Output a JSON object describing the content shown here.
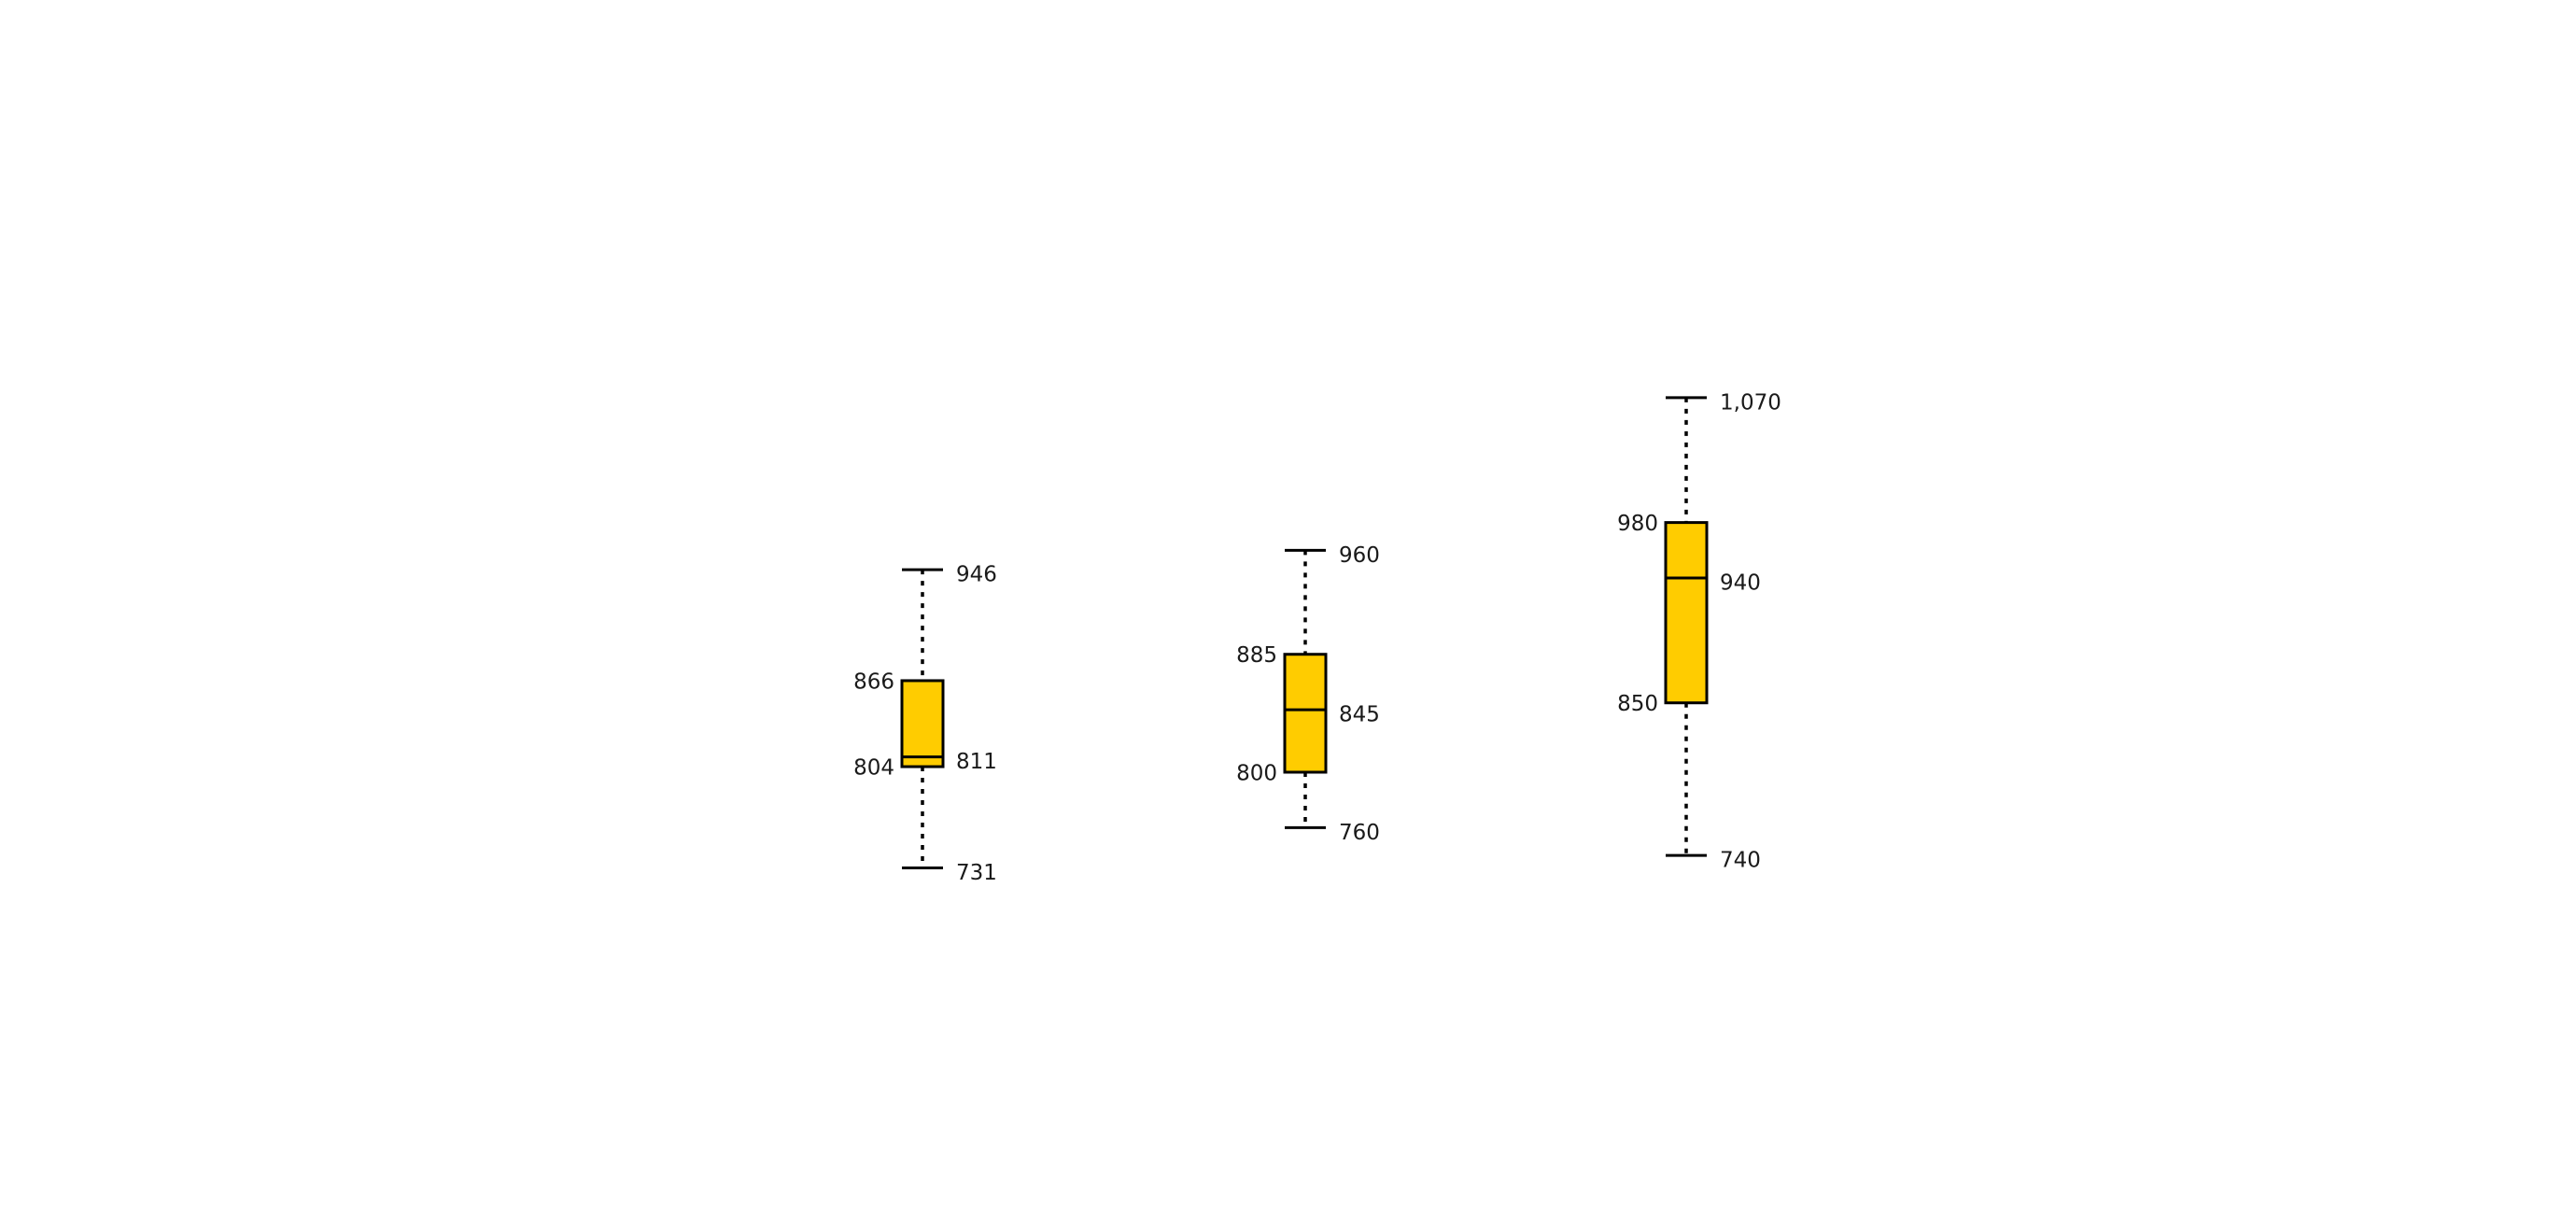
{
  "chart_data": {
    "type": "box",
    "title": "",
    "xlabel": "",
    "ylabel": "",
    "grid": false,
    "legend": "none",
    "box_color": "#FFCC00",
    "edge_color": "#000000",
    "ylim": [
      700,
      1100
    ],
    "boxes": [
      {
        "min": 731,
        "q1": 804,
        "median": 811,
        "q3": 866,
        "max": 946,
        "labels": {
          "min": "731",
          "q1": "804",
          "median": "811",
          "q3": "866",
          "max": "946"
        }
      },
      {
        "min": 760,
        "q1": 800,
        "median": 845,
        "q3": 885,
        "max": 960,
        "labels": {
          "min": "760",
          "q1": "800",
          "median": "845",
          "q3": "885",
          "max": "960"
        }
      },
      {
        "min": 740,
        "q1": 850,
        "median": 940,
        "q3": 980,
        "max": 1070,
        "labels": {
          "min": "740",
          "q1": "850",
          "median": "940",
          "q3": "980",
          "max": "1,070"
        }
      }
    ]
  }
}
